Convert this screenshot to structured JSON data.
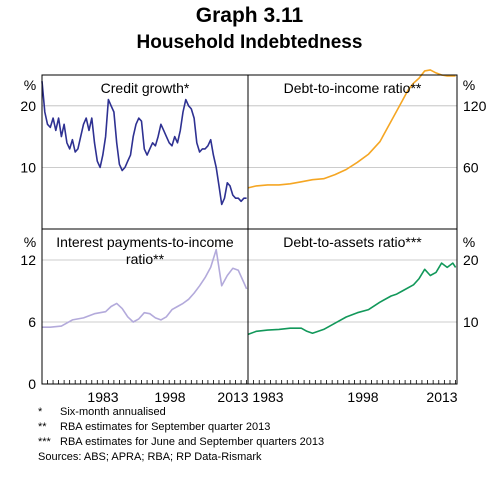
{
  "figure": {
    "title": "Graph 3.11",
    "subtitle": "Household Indebtedness",
    "unit_label": "%"
  },
  "notes": [
    {
      "mark": "*",
      "text": "Six-month annualised"
    },
    {
      "mark": "**",
      "text": "RBA estimates for September quarter 2013"
    },
    {
      "mark": "***",
      "text": "RBA estimates for June and September quarters 2013"
    },
    {
      "mark": "",
      "text": "Sources: ABS; APRA; RBA; RP Data-Rismark"
    }
  ],
  "colors": {
    "credit": "#2e3192",
    "debt_income": "#f5a623",
    "interest": "#b3aadb",
    "debt_assets": "#12985a"
  },
  "chart_data": [
    {
      "type": "line",
      "title": "Credit growth*",
      "y_unit": "%",
      "y_axis_side": "left",
      "yticks": [
        "10",
        "20"
      ],
      "ylim": [
        0,
        25
      ],
      "xlim": [
        1976.5,
        2013.75
      ],
      "series": [
        {
          "values": [
            [
              1976.5,
              24
            ],
            [
              1977,
              19
            ],
            [
              1977.5,
              17
            ],
            [
              1978,
              16.5
            ],
            [
              1978.5,
              18
            ],
            [
              1979,
              16
            ],
            [
              1979.5,
              18
            ],
            [
              1980,
              15
            ],
            [
              1980.5,
              17
            ],
            [
              1981,
              14
            ],
            [
              1981.5,
              13
            ],
            [
              1982,
              14.5
            ],
            [
              1982.5,
              12.5
            ],
            [
              1983,
              13
            ],
            [
              1983.5,
              15
            ],
            [
              1984,
              17
            ],
            [
              1984.5,
              18
            ],
            [
              1985,
              16
            ],
            [
              1985.5,
              18
            ],
            [
              1986,
              14
            ],
            [
              1986.5,
              11
            ],
            [
              1987,
              10
            ],
            [
              1987.5,
              12
            ],
            [
              1988,
              15
            ],
            [
              1988.5,
              21
            ],
            [
              1989,
              20
            ],
            [
              1989.5,
              19
            ],
            [
              1990,
              14
            ],
            [
              1990.5,
              10.5
            ],
            [
              1991,
              9.5
            ],
            [
              1991.5,
              10
            ],
            [
              1992,
              11
            ],
            [
              1992.5,
              12
            ],
            [
              1993,
              15
            ],
            [
              1993.5,
              17
            ],
            [
              1994,
              18
            ],
            [
              1994.5,
              17.5
            ],
            [
              1995,
              13
            ],
            [
              1995.5,
              12
            ],
            [
              1996,
              13
            ],
            [
              1996.5,
              14
            ],
            [
              1997,
              13.5
            ],
            [
              1997.5,
              15
            ],
            [
              1998,
              17
            ],
            [
              1998.5,
              16
            ],
            [
              1999,
              15
            ],
            [
              1999.5,
              14
            ],
            [
              2000,
              13.5
            ],
            [
              2000.5,
              15
            ],
            [
              2001,
              14
            ],
            [
              2001.5,
              16
            ],
            [
              2002,
              19
            ],
            [
              2002.5,
              21
            ],
            [
              2003,
              20
            ],
            [
              2003.5,
              19.5
            ],
            [
              2004,
              18
            ],
            [
              2004.5,
              14
            ],
            [
              2005,
              12.5
            ],
            [
              2005.5,
              13
            ],
            [
              2006,
              13
            ],
            [
              2006.5,
              13.5
            ],
            [
              2007,
              14.5
            ],
            [
              2007.5,
              12
            ],
            [
              2008,
              10
            ],
            [
              2008.5,
              7
            ],
            [
              2009,
              4
            ],
            [
              2009.5,
              5
            ],
            [
              2010,
              7.5
            ],
            [
              2010.5,
              7
            ],
            [
              2011,
              5.5
            ],
            [
              2011.5,
              5
            ],
            [
              2012,
              5
            ],
            [
              2012.5,
              4.5
            ],
            [
              2013,
              5
            ],
            [
              2013.5,
              5
            ]
          ]
        }
      ]
    },
    {
      "type": "line",
      "title": "Debt-to-income ratio**",
      "y_unit": "%",
      "y_axis_side": "right",
      "yticks": [
        "60",
        "120"
      ],
      "ylim": [
        0,
        150
      ],
      "xlim": [
        1976.5,
        2013.75
      ],
      "series": [
        {
          "values": [
            [
              1976.5,
              40
            ],
            [
              1978,
              42
            ],
            [
              1980,
              43
            ],
            [
              1982,
              43
            ],
            [
              1984,
              44
            ],
            [
              1986,
              46
            ],
            [
              1988,
              48
            ],
            [
              1990,
              49
            ],
            [
              1992,
              53
            ],
            [
              1994,
              58
            ],
            [
              1996,
              65
            ],
            [
              1998,
              73
            ],
            [
              2000,
              85
            ],
            [
              2002,
              105
            ],
            [
              2004,
              125
            ],
            [
              2005,
              135
            ],
            [
              2006,
              142
            ],
            [
              2007,
              147
            ],
            [
              2008,
              154
            ],
            [
              2009,
              155
            ],
            [
              2010,
              152
            ],
            [
              2011,
              150
            ],
            [
              2012,
              149
            ],
            [
              2013,
              149
            ],
            [
              2013.5,
              149
            ]
          ]
        }
      ]
    },
    {
      "type": "line",
      "title": "Interest payments-to-income ratio**",
      "y_unit": "%",
      "y_axis_side": "left",
      "yticks": [
        "0",
        "6",
        "12"
      ],
      "ylim": [
        0,
        15
      ],
      "xlim": [
        1976.5,
        2013.75
      ],
      "xticks": [
        "1983",
        "1998",
        "2013"
      ],
      "series": [
        {
          "values": [
            [
              1976.5,
              5.5
            ],
            [
              1978,
              5.5
            ],
            [
              1980,
              5.6
            ],
            [
              1982,
              6.2
            ],
            [
              1984,
              6.4
            ],
            [
              1986,
              6.8
            ],
            [
              1988,
              7
            ],
            [
              1989,
              7.5
            ],
            [
              1990,
              7.8
            ],
            [
              1991,
              7.3
            ],
            [
              1992,
              6.5
            ],
            [
              1993,
              6
            ],
            [
              1994,
              6.3
            ],
            [
              1995,
              6.9
            ],
            [
              1996,
              6.8
            ],
            [
              1997,
              6.4
            ],
            [
              1998,
              6.2
            ],
            [
              1999,
              6.5
            ],
            [
              2000,
              7.2
            ],
            [
              2001,
              7.5
            ],
            [
              2002,
              7.8
            ],
            [
              2003,
              8.2
            ],
            [
              2004,
              8.8
            ],
            [
              2005,
              9.5
            ],
            [
              2006,
              10.3
            ],
            [
              2007,
              11.3
            ],
            [
              2008,
              13
            ],
            [
              2009,
              9.5
            ],
            [
              2010,
              10.5
            ],
            [
              2011,
              11.2
            ],
            [
              2012,
              11
            ],
            [
              2013,
              9.8
            ],
            [
              2013.5,
              9.2
            ]
          ]
        }
      ]
    },
    {
      "type": "line",
      "title": "Debt-to-assets ratio***",
      "y_unit": "%",
      "y_axis_side": "right",
      "yticks": [
        "10",
        "20"
      ],
      "ylim": [
        0,
        25
      ],
      "xlim": [
        1976.5,
        2013.75
      ],
      "xticks": [
        "1983",
        "1998",
        "2013"
      ],
      "series": [
        {
          "values": [
            [
              1976.5,
              8
            ],
            [
              1978,
              8.5
            ],
            [
              1980,
              8.7
            ],
            [
              1982,
              8.8
            ],
            [
              1984,
              9
            ],
            [
              1986,
              9
            ],
            [
              1987,
              8.5
            ],
            [
              1988,
              8.2
            ],
            [
              1990,
              8.8
            ],
            [
              1992,
              9.8
            ],
            [
              1994,
              10.8
            ],
            [
              1996,
              11.5
            ],
            [
              1998,
              12
            ],
            [
              2000,
              13.2
            ],
            [
              2002,
              14.2
            ],
            [
              2003,
              14.5
            ],
            [
              2004,
              15
            ],
            [
              2006,
              16
            ],
            [
              2007,
              17
            ],
            [
              2008,
              18.5
            ],
            [
              2009,
              17.5
            ],
            [
              2010,
              18
            ],
            [
              2011,
              19.5
            ],
            [
              2012,
              18.8
            ],
            [
              2013,
              19.5
            ],
            [
              2013.5,
              18.8
            ]
          ]
        }
      ]
    }
  ]
}
